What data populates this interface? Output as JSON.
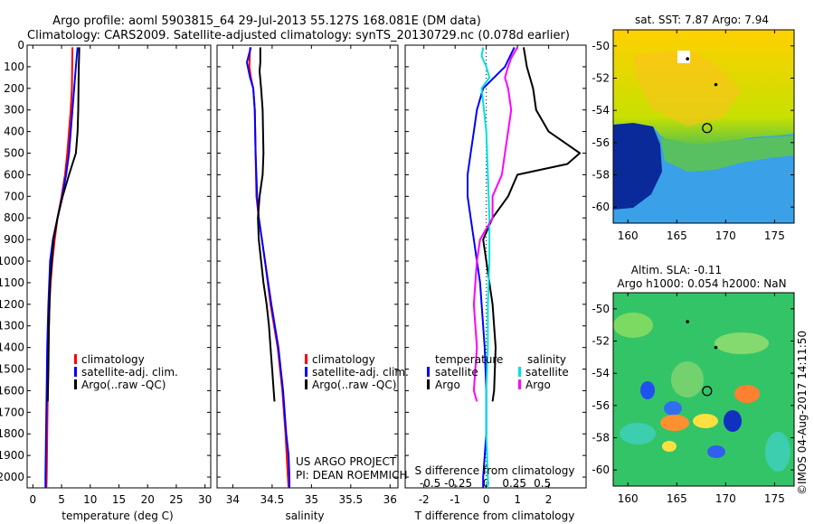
{
  "header": {
    "title_line1": "Argo profile: aoml 5903815_64 29-Jul-2013 55.127S 168.081E (DM data)",
    "title_line2": "Climatology: CARS2009. Satellite-adjusted climatology: synTS_20130729.nc (0.078d earlier)"
  },
  "colors": {
    "climatology": "#ff0000",
    "satellite": "#0000ff",
    "argo": "#000000",
    "sal_satellite": "#00e0e0",
    "sal_argo": "#ff00ff"
  },
  "chart_data": [
    {
      "id": "temperature",
      "type": "line",
      "xlabel": "temperature (deg C)",
      "ylabel": "",
      "xlim": [
        -1,
        31
      ],
      "ylim": [
        2050,
        0
      ],
      "xticks": [
        0,
        5,
        10,
        15,
        20,
        25,
        30
      ],
      "yticks": [
        0,
        100,
        200,
        300,
        400,
        500,
        600,
        700,
        800,
        900,
        1000,
        1100,
        1200,
        1300,
        1400,
        1500,
        1600,
        1700,
        1800,
        1900,
        2000
      ],
      "legend": [
        "climatology",
        "satellite-adj. clim.",
        "Argo(..raw -QC)"
      ],
      "series": [
        {
          "name": "climatology",
          "color": "#ff0000",
          "depth": [
            10,
            100,
            200,
            300,
            400,
            500,
            600,
            700,
            800,
            900,
            1000,
            1100,
            1200,
            1400,
            1600,
            1800,
            2000,
            2050
          ],
          "values": [
            6.9,
            6.85,
            6.8,
            6.6,
            6.3,
            6.0,
            5.6,
            5.0,
            4.3,
            3.8,
            3.4,
            3.1,
            2.9,
            2.7,
            2.6,
            2.5,
            2.4,
            2.35
          ]
        },
        {
          "name": "satellite-adj. clim.",
          "color": "#0000ff",
          "depth": [
            10,
            100,
            200,
            300,
            400,
            500,
            600,
            700,
            800,
            900,
            1000,
            1200,
            1400,
            1600,
            1800,
            2000,
            2050
          ],
          "values": [
            7.8,
            7.5,
            7.2,
            6.9,
            6.6,
            6.3,
            5.8,
            5.1,
            4.3,
            3.5,
            3.0,
            2.7,
            2.5,
            2.4,
            2.3,
            2.2,
            2.2
          ]
        },
        {
          "name": "Argo(..raw -QC)",
          "color": "#000000",
          "depth": [
            10,
            100,
            200,
            300,
            400,
            500,
            600,
            700,
            800,
            900,
            1000,
            1100,
            1300,
            1500,
            1650
          ],
          "values": [
            8.1,
            8.0,
            7.95,
            7.9,
            7.8,
            7.5,
            6.3,
            5.2,
            4.3,
            3.6,
            3.3,
            3.0,
            2.8,
            2.7,
            2.6
          ]
        }
      ]
    },
    {
      "id": "salinity",
      "type": "line",
      "xlabel": "salinity",
      "ylabel": "",
      "xlim": [
        33.8,
        36.1
      ],
      "ylim": [
        2050,
        0
      ],
      "xticks": [
        34,
        34.5,
        35,
        35.5,
        36
      ],
      "legend": [
        "climatology",
        "satellite-adj. clim.",
        "Argo(..raw -QC)"
      ],
      "annotations": [
        "US ARGO PROJECT",
        "PI: DEAN ROEMMICH"
      ],
      "series": [
        {
          "name": "climatology",
          "color": "#ff0000",
          "depth": [
            10,
            100,
            150,
            200,
            300,
            500,
            700,
            800,
            900,
            1000,
            1200,
            1400,
            1600,
            1800,
            2000,
            2050
          ],
          "values": [
            34.22,
            34.21,
            34.23,
            34.26,
            34.28,
            34.29,
            34.3,
            34.33,
            34.37,
            34.41,
            34.48,
            34.57,
            34.63,
            34.67,
            34.7,
            34.71
          ]
        },
        {
          "name": "satellite-adj. clim.",
          "color": "#0000ff",
          "depth": [
            10,
            50,
            80,
            150,
            200,
            300,
            500,
            700,
            800,
            900,
            1000,
            1200,
            1400,
            1600,
            1800,
            1900,
            2000,
            2050
          ],
          "values": [
            34.23,
            34.2,
            34.18,
            34.22,
            34.26,
            34.28,
            34.29,
            34.31,
            34.33,
            34.37,
            34.41,
            34.49,
            34.58,
            34.64,
            34.68,
            34.71,
            34.72,
            34.72
          ]
        },
        {
          "name": "Argo(..raw -QC)",
          "color": "#000000",
          "depth": [
            10,
            80,
            120,
            200,
            300,
            500,
            600,
            700,
            800,
            900,
            1000,
            1100,
            1200,
            1300,
            1400,
            1500,
            1600,
            1650
          ],
          "values": [
            34.35,
            34.35,
            34.34,
            34.36,
            34.38,
            34.39,
            34.38,
            34.34,
            34.32,
            34.33,
            34.36,
            34.39,
            34.43,
            34.46,
            34.48,
            34.5,
            34.52,
            34.53
          ]
        }
      ]
    },
    {
      "id": "difference",
      "type": "line",
      "xlabel": "T difference from climatology",
      "xlabel2": "S difference from climatology",
      "xlim": [
        -2.6,
        3.2
      ],
      "ylim": [
        2050,
        0
      ],
      "xticks": [
        -2,
        -1,
        0,
        1,
        2
      ],
      "s_ticks": [
        "-0.5",
        "-0.25",
        "0",
        "0.25",
        "0.5"
      ],
      "s_tick_positions": [
        -1.8,
        -0.9,
        0,
        0.9,
        1.8
      ],
      "legend_titles": [
        "temperature",
        "salinity"
      ],
      "legend": {
        "temperature": [
          "satellite",
          "Argo"
        ],
        "salinity": [
          "satellite",
          "Argo"
        ]
      },
      "series": [
        {
          "name": "temperature satellite",
          "color": "#0000ff",
          "depth": [
            10,
            100,
            200,
            300,
            400,
            500,
            600,
            700,
            800,
            900,
            1000,
            1100,
            1200,
            1300,
            1400,
            1600,
            1800,
            2000,
            2050
          ],
          "values": [
            0.9,
            0.6,
            -0.1,
            -0.3,
            -0.4,
            -0.5,
            -0.6,
            -0.6,
            -0.5,
            -0.4,
            -0.3,
            -0.2,
            -0.15,
            -0.1,
            -0.05,
            0.0,
            0.0,
            -0.1,
            -0.1
          ]
        },
        {
          "name": "temperature Argo",
          "color": "#000000",
          "depth": [
            10,
            100,
            200,
            300,
            400,
            450,
            500,
            550,
            600,
            700,
            800,
            900,
            1000,
            1100,
            1200,
            1400,
            1600,
            1650
          ],
          "values": [
            1.2,
            1.3,
            1.5,
            1.6,
            2.0,
            2.5,
            3.0,
            2.6,
            1.0,
            0.7,
            0.2,
            -0.1,
            0.0,
            0.1,
            0.2,
            0.3,
            0.25,
            0.2
          ]
        },
        {
          "name": "salinity satellite",
          "color": "#00e0e0",
          "depth": [
            10,
            50,
            100,
            150,
            200,
            400,
            600,
            800,
            1000,
            1200,
            1400,
            1600,
            1800,
            2000,
            2050
          ],
          "values": [
            -0.1,
            -0.15,
            0.0,
            0.1,
            -0.15,
            0.0,
            0.05,
            0.1,
            0.1,
            0.05,
            0.05,
            0.0,
            0.0,
            0.05,
            0.05
          ]
        },
        {
          "name": "salinity Argo",
          "color": "#ff00ff",
          "depth": [
            10,
            60,
            100,
            150,
            200,
            300,
            400,
            500,
            600,
            700,
            800,
            900,
            1000,
            1200,
            1400,
            1600,
            1650
          ],
          "values": [
            1.0,
            0.8,
            0.7,
            0.6,
            0.7,
            0.8,
            0.7,
            0.6,
            0.5,
            0.2,
            0.2,
            -0.2,
            -0.3,
            -0.4,
            -0.3,
            -0.4,
            -0.3
          ]
        }
      ]
    },
    {
      "id": "sst-map",
      "type": "heatmap",
      "title": "sat. SST: 7.87  Argo: 7.94",
      "xlim": [
        158.5,
        177
      ],
      "ylim": [
        -61,
        -49
      ],
      "xticks": [
        160,
        165,
        170,
        175
      ],
      "yticks": [
        -50,
        -52,
        -54,
        -56,
        -58,
        -60
      ],
      "markers": [
        {
          "lon": 168.1,
          "lat": -55.1,
          "shape": "circle"
        },
        {
          "lon": 169,
          "lat": -52.4,
          "shape": "star"
        },
        {
          "lon": 166.1,
          "lat": -50.8,
          "shape": "star"
        }
      ]
    },
    {
      "id": "sla-map",
      "type": "heatmap",
      "title": "Altim. SLA: -0.11",
      "subtitle": "Argo h1000: 0.054  h2000: NaN",
      "xlim": [
        158.5,
        177
      ],
      "ylim": [
        -61,
        -49
      ],
      "xticks": [
        160,
        165,
        170,
        175
      ],
      "yticks": [
        -50,
        -52,
        -54,
        -56,
        -58,
        -60
      ],
      "markers": [
        {
          "lon": 168.1,
          "lat": -55.1,
          "shape": "circle"
        },
        {
          "lon": 169,
          "lat": -52.4,
          "shape": "star"
        },
        {
          "lon": 166.1,
          "lat": -50.8,
          "shape": "star"
        }
      ]
    }
  ],
  "footer": {
    "credit": "©IMOS 04-Aug-2017 14:11:50"
  }
}
